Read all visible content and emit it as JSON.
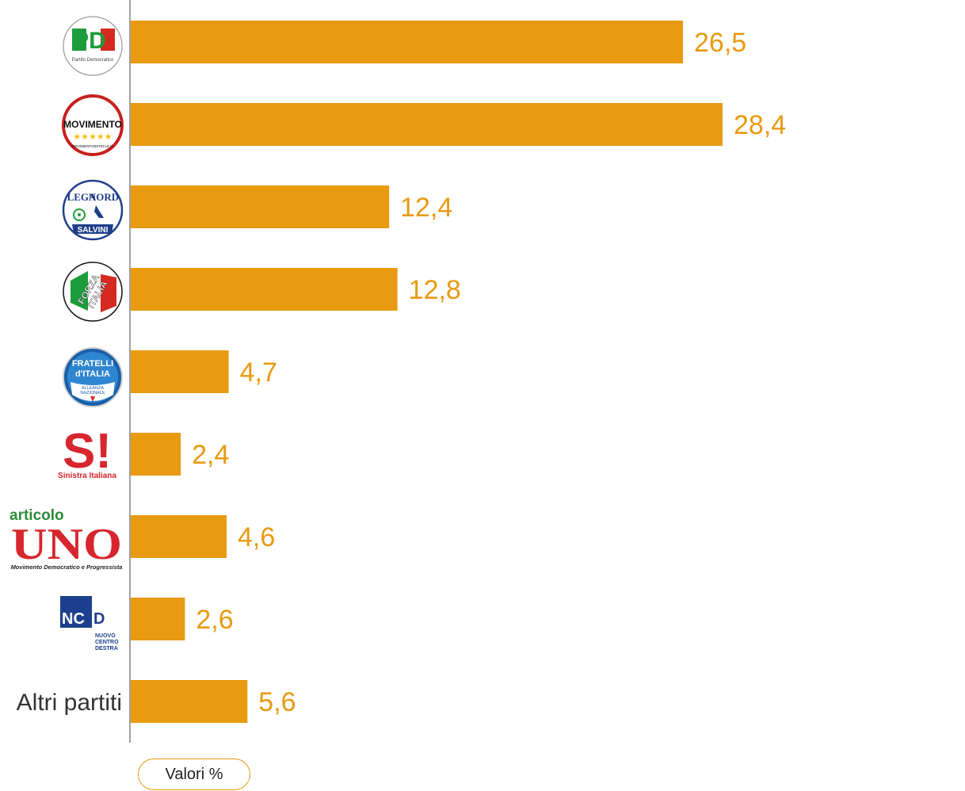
{
  "colors": {
    "bar": "#E89A10",
    "label": "#E89A10",
    "axis": "#808080"
  },
  "chart_data": {
    "type": "bar",
    "orientation": "horizontal",
    "categories": [
      {
        "logo": "pd-logo",
        "logo_text": [
          "PD",
          "Partito Democratico"
        ]
      },
      {
        "logo": "movimento-5-stelle-logo",
        "logo_text": [
          "MOVIMENTO",
          "MOVIMENTO5STELLE.IT"
        ]
      },
      {
        "logo": "lega-nord-logo",
        "logo_text": [
          "LEGA",
          "NORD",
          "SALVINI"
        ]
      },
      {
        "logo": "forza-italia-logo",
        "logo_text": [
          "FORZA",
          "ITALIA"
        ]
      },
      {
        "logo": "fratelli-d-italia-logo",
        "logo_text": [
          "FRATELLI",
          "d'ITALIA",
          "ALLEANZA",
          "NAZIONALE"
        ]
      },
      {
        "logo": "sinistra-italiana-logo",
        "logo_text": [
          "SI",
          "Sinistra Italiana"
        ]
      },
      {
        "logo": "articolo-uno-logo",
        "logo_text": [
          "articolo",
          "UNO",
          "Movimento Democratico e Progressista"
        ]
      },
      {
        "logo": "ncd-logo",
        "logo_text": [
          "NCD",
          "NUOVO",
          "CENTRO",
          "DESTRA"
        ]
      },
      {
        "label": "Altri partiti"
      }
    ],
    "values": [
      26.5,
      28.4,
      12.4,
      12.8,
      4.7,
      2.4,
      4.6,
      2.6,
      5.6
    ],
    "value_labels": [
      "26,5",
      "28,4",
      "12,4",
      "12,8",
      "4,7",
      "2,4",
      "4,6",
      "2,6",
      "5,6"
    ],
    "xlim": [
      0,
      28.4
    ],
    "grid": false,
    "unit_label": "Valori %"
  }
}
